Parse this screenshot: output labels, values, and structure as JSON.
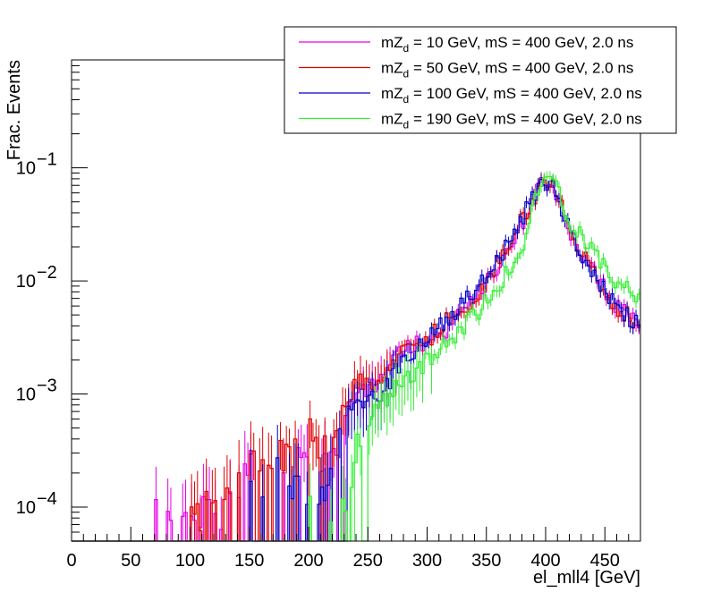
{
  "chart_data": {
    "type": "line",
    "title": "",
    "xlabel": "el_mll4 [GeV]",
    "ylabel": "Frac. Events",
    "xlim": [
      0,
      480
    ],
    "ylim": [
      5e-05,
      0.9
    ],
    "yscale": "log",
    "grid": false,
    "legend_position": "top-right",
    "x_ticks": [
      "0",
      "50",
      "100",
      "150",
      "200",
      "250",
      "300",
      "350",
      "400",
      "450"
    ],
    "y_tick_base": "10",
    "y_tick_exponents": [
      "−4",
      "−3",
      "−2",
      "−1"
    ],
    "series": [
      {
        "name": "mZ_d = 10 GeV, mS = 400 GeV, 2.0 ns",
        "legend_parts": [
          "mZ",
          "d",
          " = 10 GeV, mS = 400 GeV, 2.0 ns"
        ],
        "color": "#e600e6",
        "x": [
          70,
          110,
          120,
          130,
          150,
          160,
          170,
          180,
          190,
          200,
          220,
          240,
          260,
          280,
          300,
          320,
          340,
          360,
          380,
          390,
          400,
          410,
          420,
          440,
          460,
          480
        ],
        "y": [
          0.0001,
          0.0001,
          0.0001,
          0.0001,
          0.0003,
          0.0005,
          0.0003,
          0.0003,
          0.0005,
          0.0002,
          0.0003,
          0.001,
          0.0013,
          0.0025,
          0.003,
          0.004,
          0.007,
          0.014,
          0.032,
          0.055,
          0.08,
          0.058,
          0.028,
          0.012,
          0.006,
          0.004
        ]
      },
      {
        "name": "mZ_d = 50 GeV, mS = 400 GeV, 2.0 ns",
        "legend_parts": [
          "mZ",
          "d",
          " = 50 GeV, mS = 400 GeV, 2.0 ns"
        ],
        "color": "#e00000",
        "x": [
          100,
          110,
          120,
          140,
          160,
          180,
          200,
          220,
          240,
          260,
          280,
          300,
          320,
          340,
          360,
          380,
          390,
          400,
          410,
          420,
          440,
          460,
          480
        ],
        "y": [
          0.0001,
          0.0001,
          0.0001,
          0.0003,
          0.0002,
          0.0003,
          0.0005,
          0.0003,
          0.0013,
          0.0012,
          0.0025,
          0.003,
          0.005,
          0.007,
          0.015,
          0.035,
          0.055,
          0.082,
          0.06,
          0.028,
          0.012,
          0.006,
          0.004
        ]
      },
      {
        "name": "mZ_d = 100 GeV, mS = 400 GeV, 2.0 ns",
        "legend_parts": [
          "mZ",
          "d",
          " = 100 GeV, mS = 400 GeV, 2.0 ns"
        ],
        "color": "#0000c8",
        "x": [
          150,
          160,
          180,
          200,
          220,
          230,
          240,
          260,
          280,
          300,
          320,
          340,
          360,
          380,
          390,
          400,
          410,
          420,
          440,
          460,
          480
        ],
        "y": [
          0.0002,
          0.0002,
          0.0002,
          0.0001,
          0.0002,
          0.0005,
          0.0008,
          0.001,
          0.002,
          0.003,
          0.005,
          0.008,
          0.015,
          0.035,
          0.06,
          0.08,
          0.06,
          0.028,
          0.011,
          0.006,
          0.004
        ]
      },
      {
        "name": "mZ_d = 190 GeV, mS = 400 GeV, 2.0 ns",
        "legend_parts": [
          "mZ",
          "d",
          " = 190 GeV, mS = 400 GeV, 2.0 ns"
        ],
        "color": "#33ee33",
        "x": [
          200,
          210,
          220,
          230,
          240,
          250,
          260,
          280,
          300,
          320,
          340,
          360,
          380,
          390,
          400,
          410,
          420,
          440,
          460,
          480
        ],
        "y": [
          0.0002,
          0.0001,
          0.0001,
          0.0001,
          0.0003,
          0.0006,
          0.0008,
          0.0013,
          0.002,
          0.003,
          0.005,
          0.009,
          0.02,
          0.05,
          0.075,
          0.07,
          0.035,
          0.018,
          0.01,
          0.007
        ]
      }
    ]
  }
}
